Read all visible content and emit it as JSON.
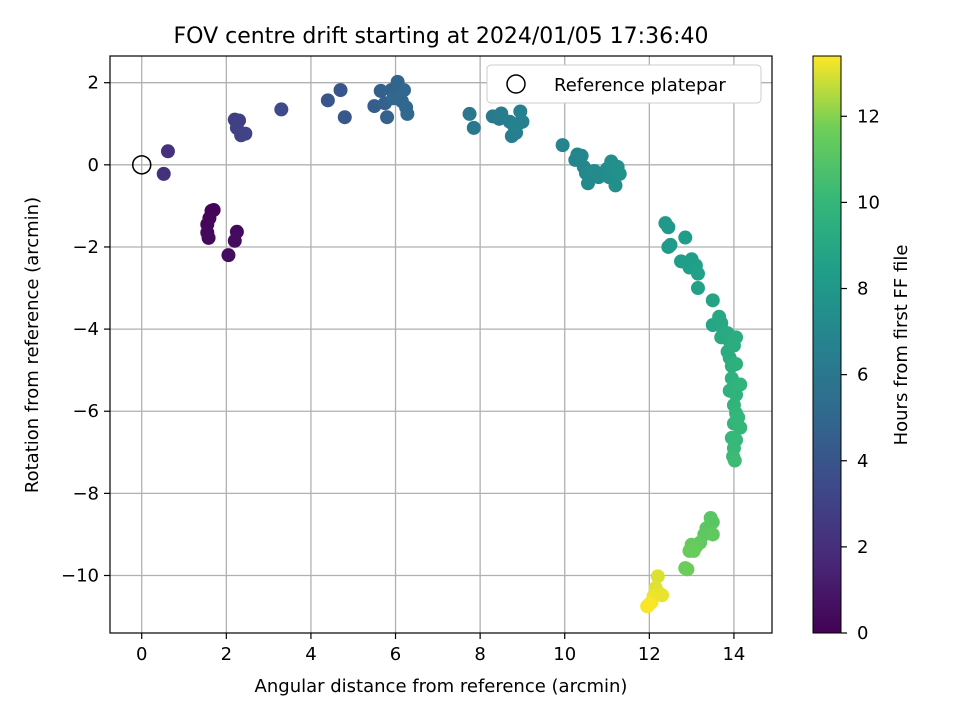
{
  "chart_data": {
    "type": "scatter",
    "title": "FOV centre drift starting at 2024/01/05 17:36:40",
    "xlabel": "Angular distance from reference (arcmin)",
    "ylabel": "Rotation from reference (arcmin)",
    "xlim": [
      -0.75,
      14.9
    ],
    "ylim": [
      -11.4,
      2.65
    ],
    "xticks": [
      0,
      2,
      4,
      6,
      8,
      10,
      12,
      14
    ],
    "yticks": [
      -10,
      -8,
      -6,
      -4,
      -2,
      0,
      2
    ],
    "grid": true,
    "legend": {
      "placement": "top-right",
      "entries": [
        "Reference platepar"
      ]
    },
    "reference_point": {
      "x": 0,
      "y": 0,
      "label": "Reference platepar"
    },
    "colorbar": {
      "label": "Hours from first FF file",
      "range": [
        0,
        13.4
      ],
      "ticks": [
        0,
        2,
        4,
        6,
        8,
        10,
        12
      ],
      "colormap": "viridis"
    },
    "points": [
      {
        "x": 1.65,
        "y": -1.12,
        "c": 0.1
      },
      {
        "x": 1.7,
        "y": -1.1,
        "c": 0.15
      },
      {
        "x": 1.6,
        "y": -1.3,
        "c": 0.2
      },
      {
        "x": 1.55,
        "y": -1.45,
        "c": 0.25
      },
      {
        "x": 1.55,
        "y": -1.65,
        "c": 0.3
      },
      {
        "x": 1.58,
        "y": -1.78,
        "c": 0.35
      },
      {
        "x": 2.25,
        "y": -1.63,
        "c": 0.4
      },
      {
        "x": 2.2,
        "y": -1.85,
        "c": 0.45
      },
      {
        "x": 2.05,
        "y": -2.2,
        "c": 0.5
      },
      {
        "x": 0.52,
        "y": -0.22,
        "c": 2.1
      },
      {
        "x": 0.62,
        "y": 0.33,
        "c": 2.2
      },
      {
        "x": 2.2,
        "y": 1.1,
        "c": 2.8
      },
      {
        "x": 2.3,
        "y": 1.08,
        "c": 2.85
      },
      {
        "x": 2.25,
        "y": 0.9,
        "c": 2.9
      },
      {
        "x": 2.35,
        "y": 0.72,
        "c": 3.0
      },
      {
        "x": 2.45,
        "y": 0.76,
        "c": 3.05
      },
      {
        "x": 3.3,
        "y": 1.35,
        "c": 3.4
      },
      {
        "x": 4.4,
        "y": 1.57,
        "c": 4.0
      },
      {
        "x": 4.7,
        "y": 1.82,
        "c": 4.05
      },
      {
        "x": 4.8,
        "y": 1.16,
        "c": 4.1
      },
      {
        "x": 5.5,
        "y": 1.43,
        "c": 4.5
      },
      {
        "x": 5.65,
        "y": 1.8,
        "c": 4.6
      },
      {
        "x": 5.75,
        "y": 1.5,
        "c": 4.65
      },
      {
        "x": 5.8,
        "y": 1.16,
        "c": 4.7
      },
      {
        "x": 5.9,
        "y": 1.82,
        "c": 4.75
      },
      {
        "x": 6.0,
        "y": 1.7,
        "c": 4.8
      },
      {
        "x": 6.05,
        "y": 2.02,
        "c": 4.85
      },
      {
        "x": 6.15,
        "y": 1.55,
        "c": 4.9
      },
      {
        "x": 6.2,
        "y": 1.82,
        "c": 4.95
      },
      {
        "x": 6.25,
        "y": 1.4,
        "c": 5.0
      },
      {
        "x": 6.28,
        "y": 1.24,
        "c": 5.05
      },
      {
        "x": 5.95,
        "y": 1.62,
        "c": 5.1
      },
      {
        "x": 7.75,
        "y": 1.24,
        "c": 6.0
      },
      {
        "x": 7.85,
        "y": 0.9,
        "c": 6.05
      },
      {
        "x": 8.3,
        "y": 1.18,
        "c": 6.2
      },
      {
        "x": 8.5,
        "y": 1.25,
        "c": 6.25
      },
      {
        "x": 8.45,
        "y": 1.12,
        "c": 6.3
      },
      {
        "x": 8.7,
        "y": 1.05,
        "c": 6.35
      },
      {
        "x": 8.75,
        "y": 0.7,
        "c": 6.4
      },
      {
        "x": 8.85,
        "y": 0.78,
        "c": 6.45
      },
      {
        "x": 8.9,
        "y": 1.0,
        "c": 6.5
      },
      {
        "x": 8.95,
        "y": 1.3,
        "c": 6.55
      },
      {
        "x": 9.0,
        "y": 1.05,
        "c": 6.6
      },
      {
        "x": 8.8,
        "y": 0.95,
        "c": 6.65
      },
      {
        "x": 9.95,
        "y": 0.48,
        "c": 6.8
      },
      {
        "x": 10.25,
        "y": 0.12,
        "c": 6.85
      },
      {
        "x": 10.3,
        "y": 0.25,
        "c": 6.9
      },
      {
        "x": 10.4,
        "y": 0.22,
        "c": 6.95
      },
      {
        "x": 10.45,
        "y": -0.05,
        "c": 7.0
      },
      {
        "x": 10.5,
        "y": -0.2,
        "c": 7.05
      },
      {
        "x": 10.55,
        "y": -0.45,
        "c": 7.1
      },
      {
        "x": 10.7,
        "y": -0.15,
        "c": 7.15
      },
      {
        "x": 10.8,
        "y": -0.3,
        "c": 7.2
      },
      {
        "x": 10.9,
        "y": -0.2,
        "c": 7.25
      },
      {
        "x": 11.0,
        "y": -0.1,
        "c": 7.3
      },
      {
        "x": 11.05,
        "y": -0.3,
        "c": 7.35
      },
      {
        "x": 11.1,
        "y": 0.08,
        "c": 7.4
      },
      {
        "x": 11.15,
        "y": -0.2,
        "c": 7.45
      },
      {
        "x": 11.2,
        "y": -0.5,
        "c": 7.5
      },
      {
        "x": 11.25,
        "y": -0.05,
        "c": 7.55
      },
      {
        "x": 11.3,
        "y": -0.22,
        "c": 7.6
      },
      {
        "x": 12.38,
        "y": -1.42,
        "c": 8.0
      },
      {
        "x": 12.45,
        "y": -1.52,
        "c": 8.05
      },
      {
        "x": 12.45,
        "y": -2.0,
        "c": 8.1
      },
      {
        "x": 12.5,
        "y": -1.95,
        "c": 8.15
      },
      {
        "x": 12.75,
        "y": -2.35,
        "c": 8.25
      },
      {
        "x": 12.85,
        "y": -1.77,
        "c": 8.3
      },
      {
        "x": 12.9,
        "y": -2.4,
        "c": 8.35
      },
      {
        "x": 12.95,
        "y": -2.5,
        "c": 8.4
      },
      {
        "x": 13.0,
        "y": -2.3,
        "c": 8.45
      },
      {
        "x": 13.1,
        "y": -2.45,
        "c": 8.5
      },
      {
        "x": 13.15,
        "y": -2.65,
        "c": 8.55
      },
      {
        "x": 13.15,
        "y": -3.0,
        "c": 8.6
      },
      {
        "x": 13.5,
        "y": -3.3,
        "c": 8.8
      },
      {
        "x": 13.5,
        "y": -3.9,
        "c": 8.9
      },
      {
        "x": 13.65,
        "y": -3.7,
        "c": 8.95
      },
      {
        "x": 13.7,
        "y": -3.85,
        "c": 9.0
      },
      {
        "x": 13.75,
        "y": -4.05,
        "c": 9.05
      },
      {
        "x": 13.7,
        "y": -4.2,
        "c": 9.1
      },
      {
        "x": 13.85,
        "y": -4.1,
        "c": 9.15
      },
      {
        "x": 13.9,
        "y": -4.3,
        "c": 9.2
      },
      {
        "x": 13.85,
        "y": -4.55,
        "c": 9.25
      },
      {
        "x": 13.9,
        "y": -4.7,
        "c": 9.3
      },
      {
        "x": 14.0,
        "y": -4.4,
        "c": 9.35
      },
      {
        "x": 14.05,
        "y": -4.2,
        "c": 9.4
      },
      {
        "x": 13.95,
        "y": -4.9,
        "c": 9.45
      },
      {
        "x": 14.05,
        "y": -4.85,
        "c": 9.5
      },
      {
        "x": 13.95,
        "y": -5.2,
        "c": 9.55
      },
      {
        "x": 13.9,
        "y": -5.5,
        "c": 9.6
      },
      {
        "x": 14.0,
        "y": -5.4,
        "c": 9.65
      },
      {
        "x": 14.05,
        "y": -5.6,
        "c": 9.7
      },
      {
        "x": 14.15,
        "y": -5.35,
        "c": 9.75
      },
      {
        "x": 14.0,
        "y": -5.85,
        "c": 9.8
      },
      {
        "x": 14.05,
        "y": -6.05,
        "c": 9.85
      },
      {
        "x": 14.0,
        "y": -6.3,
        "c": 9.9
      },
      {
        "x": 14.1,
        "y": -6.15,
        "c": 9.95
      },
      {
        "x": 14.15,
        "y": -6.4,
        "c": 10.0
      },
      {
        "x": 13.95,
        "y": -6.65,
        "c": 10.05
      },
      {
        "x": 14.05,
        "y": -6.7,
        "c": 10.1
      },
      {
        "x": 14.0,
        "y": -6.9,
        "c": 10.15
      },
      {
        "x": 13.98,
        "y": -7.1,
        "c": 10.2
      },
      {
        "x": 14.02,
        "y": -7.2,
        "c": 10.3
      },
      {
        "x": 13.45,
        "y": -8.6,
        "c": 11.1
      },
      {
        "x": 13.5,
        "y": -8.7,
        "c": 11.15
      },
      {
        "x": 13.35,
        "y": -8.85,
        "c": 11.2
      },
      {
        "x": 13.3,
        "y": -9.0,
        "c": 11.25
      },
      {
        "x": 13.5,
        "y": -9.0,
        "c": 11.3
      },
      {
        "x": 13.2,
        "y": -9.2,
        "c": 11.35
      },
      {
        "x": 13.0,
        "y": -9.25,
        "c": 11.4
      },
      {
        "x": 13.1,
        "y": -9.3,
        "c": 11.45
      },
      {
        "x": 12.95,
        "y": -9.4,
        "c": 11.5
      },
      {
        "x": 13.05,
        "y": -9.4,
        "c": 11.55
      },
      {
        "x": 12.85,
        "y": -9.82,
        "c": 11.6
      },
      {
        "x": 12.9,
        "y": -9.85,
        "c": 11.65
      },
      {
        "x": 12.2,
        "y": -10.02,
        "c": 13.0
      },
      {
        "x": 12.15,
        "y": -10.3,
        "c": 13.05
      },
      {
        "x": 12.25,
        "y": -10.45,
        "c": 13.1
      },
      {
        "x": 12.3,
        "y": -10.48,
        "c": 13.15
      },
      {
        "x": 12.1,
        "y": -10.5,
        "c": 13.2
      },
      {
        "x": 12.05,
        "y": -10.65,
        "c": 13.25
      },
      {
        "x": 11.95,
        "y": -10.75,
        "c": 13.3
      },
      {
        "x": 12.0,
        "y": -10.7,
        "c": 13.35
      }
    ]
  }
}
